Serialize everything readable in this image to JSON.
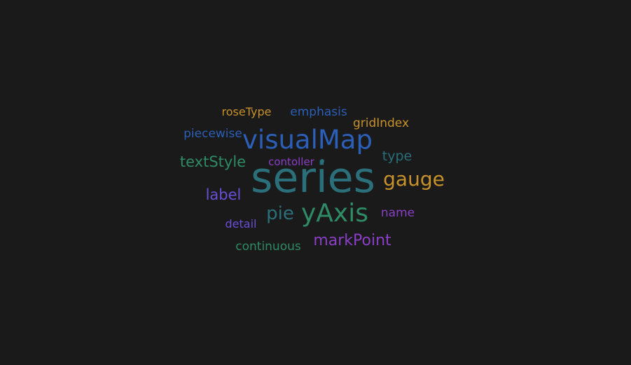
{
  "chart_data": {
    "type": "wordcloud",
    "words": [
      {
        "text": "series",
        "value": 100,
        "color": "#2a6f7a"
      },
      {
        "text": "visualMap",
        "value": 62,
        "color": "#2b5fb8"
      },
      {
        "text": "yAxis",
        "value": 60,
        "color": "#2f8a66"
      },
      {
        "text": "gauge",
        "value": 46,
        "color": "#c8922a"
      },
      {
        "text": "markPoint",
        "value": 36,
        "color": "#8a3fc6"
      },
      {
        "text": "pie",
        "value": 42,
        "color": "#2a6f7a"
      },
      {
        "text": "textStyle",
        "value": 34,
        "color": "#2f8a66"
      },
      {
        "text": "label",
        "value": 34,
        "color": "#6a4fd6"
      },
      {
        "text": "type",
        "value": 30,
        "color": "#2a6f7a"
      },
      {
        "text": "continuous",
        "value": 28,
        "color": "#2f8a66"
      },
      {
        "text": "emphasis",
        "value": 27,
        "color": "#2b5fb8"
      },
      {
        "text": "gridIndex",
        "value": 27,
        "color": "#c8922a"
      },
      {
        "text": "piecewise",
        "value": 27,
        "color": "#2b5fb8"
      },
      {
        "text": "name",
        "value": 27,
        "color": "#8a3fc6"
      },
      {
        "text": "detail",
        "value": 26,
        "color": "#6a4fd6"
      },
      {
        "text": "roseType",
        "value": 26,
        "color": "#c8922a"
      },
      {
        "text": "contoller",
        "value": 24,
        "color": "#8a3fc6"
      }
    ]
  }
}
